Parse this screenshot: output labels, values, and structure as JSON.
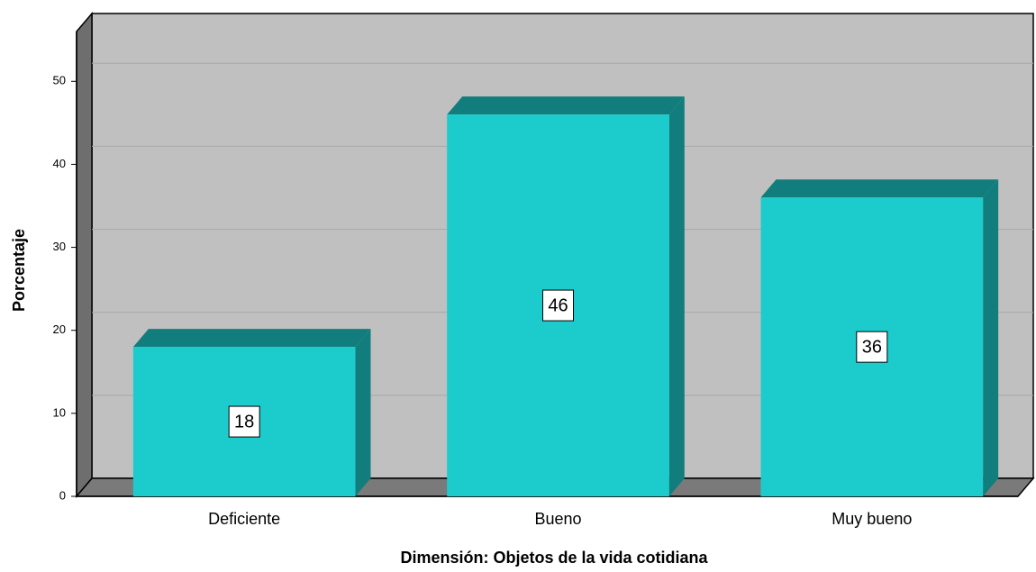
{
  "chart_data": {
    "type": "bar3d",
    "x_label": "Dimensión: Objetos de la vida cotidiana",
    "y_label": "Porcentaje",
    "categories": [
      "Deficiente",
      "Bueno",
      "Muy bueno"
    ],
    "values": [
      18,
      46,
      36
    ],
    "color": "#1ccccc",
    "ylim": [
      0,
      56
    ],
    "yticks": [
      0,
      10,
      20,
      30,
      40,
      50
    ],
    "grid": true
  }
}
